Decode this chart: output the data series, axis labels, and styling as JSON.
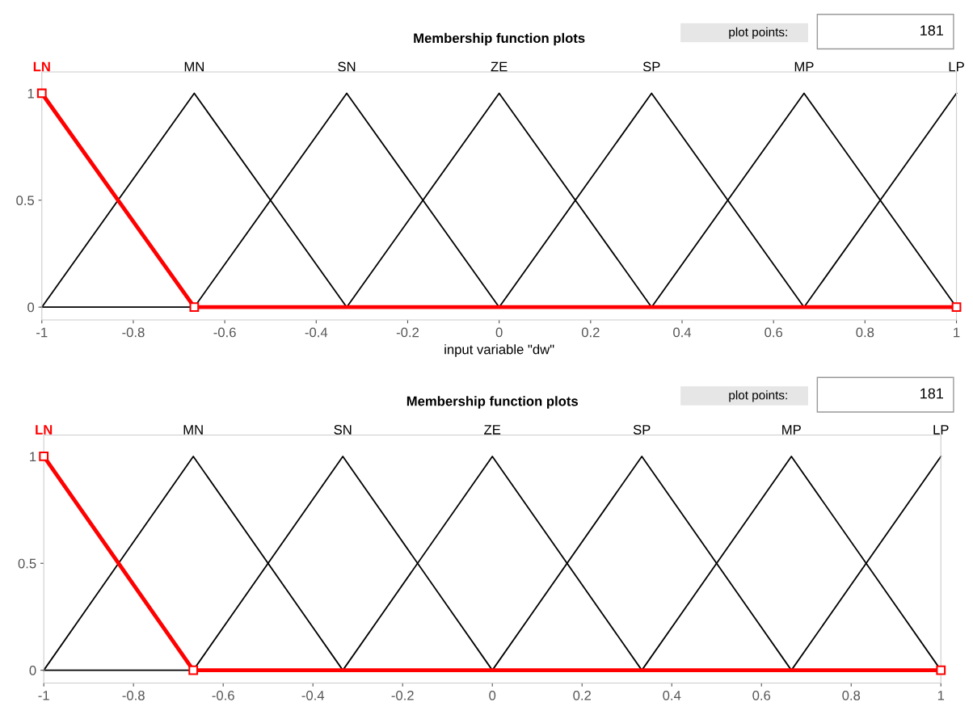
{
  "chart_data": [
    {
      "type": "line",
      "title": "Membership function plots",
      "xlabel": "input variable \"dw\"",
      "annotations": [
        "plot points:",
        "181"
      ],
      "xlim": [
        -1,
        1
      ],
      "ylim": [
        -0.06,
        1.1
      ],
      "xticks": [
        -1,
        {
          "value": -0.8,
          "label": "-0.8"
        },
        {
          "value": -0.6,
          "label": "-0.6"
        },
        {
          "value": -0.4,
          "label": "-0.4"
        },
        {
          "value": -0.2,
          "label": "-0.2"
        },
        0,
        0.2,
        0.4,
        0.6,
        0.8,
        1
      ],
      "yticks": [
        0,
        0.5,
        1
      ],
      "grid": false,
      "legend": false,
      "line_style": "solid",
      "series": [
        {
          "name": "MN",
          "x": [
            -1,
            -0.6667,
            -0.3333
          ],
          "values": [
            0,
            1,
            0
          ],
          "color": "#000000",
          "marker": "none"
        },
        {
          "name": "SN",
          "x": [
            -1,
            -0.6667,
            -0.3333,
            0
          ],
          "values": [
            0,
            0,
            1,
            0
          ],
          "color": "#000000",
          "marker": "none"
        },
        {
          "name": "ZE",
          "x": [
            -0.3333,
            0,
            0.3333
          ],
          "values": [
            0,
            1,
            0
          ],
          "color": "#000000",
          "marker": "none"
        },
        {
          "name": "SP",
          "x": [
            0,
            0.3333,
            0.6667
          ],
          "values": [
            0,
            1,
            0
          ],
          "color": "#000000",
          "marker": "none"
        },
        {
          "name": "MP",
          "x": [
            0.3333,
            0.6667,
            1
          ],
          "values": [
            0,
            1,
            0
          ],
          "color": "#000000",
          "marker": "none"
        },
        {
          "name": "LP",
          "x": [
            0.6667,
            1
          ],
          "values": [
            0,
            1
          ],
          "color": "#000000",
          "marker": "none"
        },
        {
          "name": "LN",
          "x": [
            -1,
            -0.6667,
            1
          ],
          "values": [
            1,
            0,
            0
          ],
          "color": "#ff0000",
          "marker": "square"
        }
      ]
    },
    {
      "type": "line",
      "title": "Membership function plots",
      "annotations": [
        "plot points:",
        "181"
      ],
      "xlim": [
        -1,
        1
      ],
      "ylim": [
        -0.06,
        1.1
      ],
      "xticks": [
        -1,
        {
          "value": -0.8,
          "label": "-0.8"
        },
        {
          "value": -0.6,
          "label": "-0.6"
        },
        {
          "value": -0.4,
          "label": "-0.4"
        },
        {
          "value": -0.2,
          "label": "-0.2"
        },
        0,
        0.2,
        0.4,
        0.6,
        0.8,
        1
      ],
      "yticks": [
        0,
        0.5,
        1
      ],
      "grid": false,
      "legend": false,
      "line_style": "solid",
      "series": [
        {
          "name": "MN",
          "x": [
            -1,
            -0.6667,
            -0.3333
          ],
          "values": [
            0,
            1,
            0
          ],
          "color": "#000000",
          "marker": "none"
        },
        {
          "name": "SN",
          "x": [
            -1,
            -0.6667,
            -0.3333,
            0
          ],
          "values": [
            0,
            0,
            1,
            0
          ],
          "color": "#000000",
          "marker": "none"
        },
        {
          "name": "ZE",
          "x": [
            -0.3333,
            0,
            0.3333
          ],
          "values": [
            0,
            1,
            0
          ],
          "color": "#000000",
          "marker": "none"
        },
        {
          "name": "SP",
          "x": [
            0,
            0.3333,
            0.6667
          ],
          "values": [
            0,
            1,
            0
          ],
          "color": "#000000",
          "marker": "none"
        },
        {
          "name": "MP",
          "x": [
            0.3333,
            0.6667,
            1
          ],
          "values": [
            0,
            1,
            0
          ],
          "color": "#000000",
          "marker": "none"
        },
        {
          "name": "LP",
          "x": [
            0.6667,
            1
          ],
          "values": [
            0,
            1
          ],
          "color": "#000000",
          "marker": "none"
        },
        {
          "name": "LN",
          "x": [
            -1,
            -0.6667,
            1
          ],
          "values": [
            1,
            0,
            0
          ],
          "color": "#ff0000",
          "marker": "square"
        }
      ]
    }
  ]
}
